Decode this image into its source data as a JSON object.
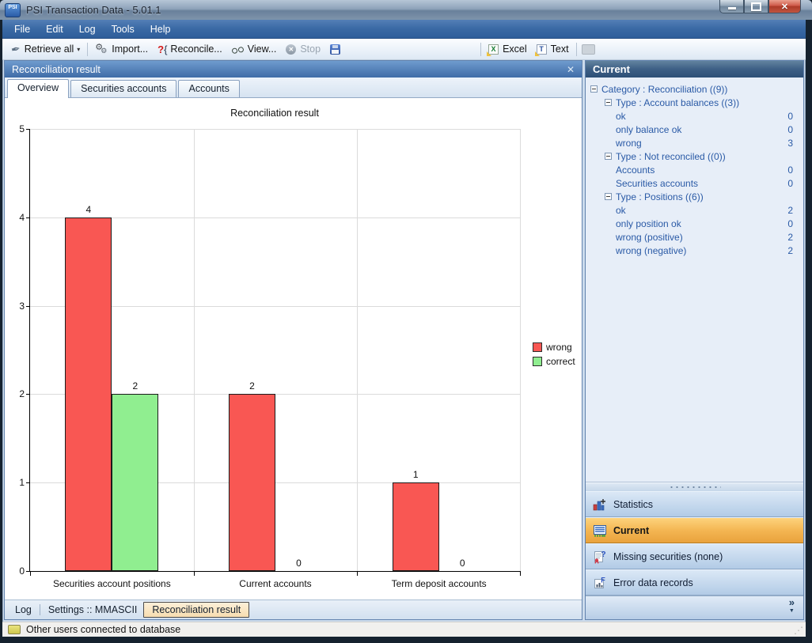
{
  "window": {
    "title": "PSI Transaction Data - 5.01.1",
    "icon_text": "PSI"
  },
  "menu": {
    "items": [
      "File",
      "Edit",
      "Log",
      "Tools",
      "Help"
    ]
  },
  "toolbar": {
    "retrieve_all": "Retrieve all",
    "import": "Import...",
    "reconcile": "Reconcile...",
    "view": "View...",
    "stop": "Stop",
    "excel": "Excel",
    "text": "Text"
  },
  "main_panel": {
    "header": "Reconciliation result",
    "tabs": [
      {
        "label": "Overview",
        "active": true
      },
      {
        "label": "Securities accounts",
        "active": false
      },
      {
        "label": "Accounts",
        "active": false
      }
    ]
  },
  "chart_data": {
    "type": "bar",
    "title": "Reconciliation result",
    "categories": [
      "Securities account positions",
      "Current accounts",
      "Term deposit accounts"
    ],
    "series": [
      {
        "name": "wrong",
        "color": "#f95753",
        "values": [
          4,
          2,
          1
        ]
      },
      {
        "name": "correct",
        "color": "#90ee90",
        "values": [
          2,
          0,
          0
        ]
      }
    ],
    "ylim": [
      0,
      5
    ],
    "yticks": [
      0,
      1,
      2,
      3,
      4,
      5
    ],
    "grid": true,
    "legend_position": "right",
    "bar_labels": true
  },
  "sidebar": {
    "header": "Current",
    "tree": [
      {
        "level": 0,
        "label": "Category : Reconciliation ((9))",
        "toggle": true
      },
      {
        "level": 1,
        "label": "Type : Account balances ((3))",
        "toggle": true
      },
      {
        "level": 2,
        "label": "ok",
        "value": 0
      },
      {
        "level": 2,
        "label": "only balance ok",
        "value": 0
      },
      {
        "level": 2,
        "label": "wrong",
        "value": 3
      },
      {
        "level": 1,
        "label": "Type : Not reconciled ((0))",
        "toggle": true
      },
      {
        "level": 2,
        "label": "Accounts",
        "value": 0
      },
      {
        "level": 2,
        "label": "Securities accounts",
        "value": 0
      },
      {
        "level": 1,
        "label": "Type : Positions ((6))",
        "toggle": true
      },
      {
        "level": 2,
        "label": "ok",
        "value": 2
      },
      {
        "level": 2,
        "label": "only position ok",
        "value": 0
      },
      {
        "level": 2,
        "label": "wrong (positive)",
        "value": 2
      },
      {
        "level": 2,
        "label": "wrong (negative)",
        "value": 2
      }
    ],
    "buttons": [
      {
        "label": "Statistics",
        "active": false
      },
      {
        "label": "Current",
        "active": true
      },
      {
        "label": "Missing securities (none)",
        "active": false
      },
      {
        "label": "Error data records",
        "active": false
      }
    ]
  },
  "bottom_tabs": [
    {
      "label": "Log",
      "active": false
    },
    {
      "label": "Settings :: MMASCII",
      "active": false
    },
    {
      "label": "Reconciliation result",
      "active": true
    }
  ],
  "status_bar": {
    "message": "Other users connected to database"
  },
  "icons": {
    "retrieve": "✒",
    "dropdown": "▾",
    "gear": "⚙",
    "reconcile_q": "?",
    "reconcile_brace": "{",
    "excel_x": "X",
    "text_t": "T",
    "stop_x": "✕",
    "win_close": "✕",
    "panel_close": "✕",
    "chevron": "»",
    "chevron_down": "▼",
    "grip": "⋰"
  },
  "colors": {
    "wrong": "#f95753",
    "correct": "#90ee90",
    "active_nav": "#f0b049"
  }
}
